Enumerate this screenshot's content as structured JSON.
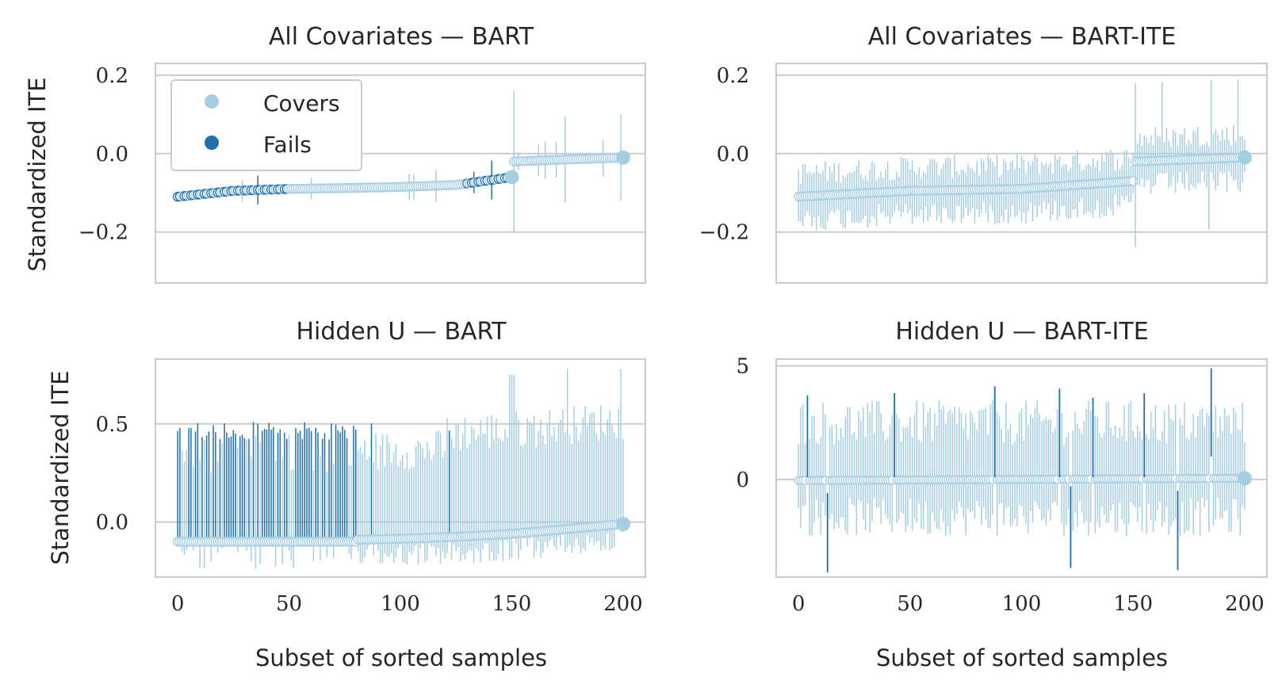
{
  "colors": {
    "covers": "#a6cee3",
    "fails": "#1f6fad",
    "grid": "#cccccc",
    "text": "#262626"
  },
  "legend": {
    "covers_label": "Covers",
    "fails_label": "Fails"
  },
  "chart_data": [
    {
      "id": "top-left",
      "type": "scatter",
      "title": "All Covariates — BART",
      "xlabel": "",
      "ylabel": "Standardized ITE",
      "xlim": [
        -10,
        210
      ],
      "ylim": [
        -0.33,
        0.23
      ],
      "xticks": [
        0,
        50,
        100,
        150,
        200
      ],
      "yticks": [
        0.2,
        0.0,
        -0.2
      ],
      "ytick_labels": [
        "0.2",
        "0.0",
        "−0.2"
      ],
      "show_xtick_labels": false,
      "legend": "top-left",
      "series": [
        {
          "name": "Covers",
          "x": [
            0,
            25,
            50,
            75,
            100,
            125,
            150,
            151,
            175,
            200
          ],
          "y": [
            -0.11,
            -0.095,
            -0.09,
            -0.088,
            -0.085,
            -0.08,
            -0.06,
            -0.02,
            -0.015,
            -0.01
          ],
          "ci_halfwidth": [
            0.008,
            0.007,
            0.007,
            0.008,
            0.01,
            0.01,
            0.12,
            0.01,
            0.01,
            0.01
          ]
        },
        {
          "name": "Fails",
          "x_ranges": [
            [
              0,
              50
            ],
            [
              130,
              150
            ]
          ],
          "y_at": [
            -0.095,
            -0.082
          ],
          "ci_halfwidth": 0.006
        }
      ]
    },
    {
      "id": "top-right",
      "type": "scatter",
      "title": "All Covariates — BART-ITE",
      "xlabel": "",
      "ylabel": "",
      "xlim": [
        -10,
        210
      ],
      "ylim": [
        -0.33,
        0.23
      ],
      "xticks": [
        0,
        50,
        100,
        150,
        200
      ],
      "yticks": [
        0.2,
        0.0,
        -0.2
      ],
      "ytick_labels": [
        "0.2",
        "0.0",
        "−0.2"
      ],
      "show_xtick_labels": false,
      "series": [
        {
          "name": "Covers",
          "x": [
            0,
            50,
            100,
            150,
            151,
            200
          ],
          "y": [
            -0.11,
            -0.095,
            -0.09,
            -0.07,
            -0.02,
            -0.01
          ],
          "ci_halfwidth": [
            0.06,
            0.06,
            0.06,
            0.06,
            0.08,
            0.08
          ]
        }
      ]
    },
    {
      "id": "bottom-left",
      "type": "scatter",
      "title": "Hidden U — BART",
      "xlabel": "Subset of sorted samples",
      "ylabel": "Standardized ITE",
      "xlim": [
        -10,
        210
      ],
      "ylim": [
        -0.28,
        0.83
      ],
      "xticks": [
        0,
        50,
        100,
        150,
        200
      ],
      "yticks": [
        0.5,
        0.0
      ],
      "ytick_labels": [
        "0.5",
        "0.0"
      ],
      "show_xtick_labels": true,
      "xtick_labels": [
        "0",
        "50",
        "100",
        "150",
        "200"
      ],
      "series": [
        {
          "name": "Covers",
          "x": [
            80,
            100,
            125,
            150,
            175,
            200
          ],
          "y": [
            -0.09,
            -0.085,
            -0.075,
            -0.06,
            -0.035,
            -0.01
          ],
          "ci_upper_max": 0.78,
          "ci_lower_min": -0.23
        },
        {
          "name": "Fails",
          "x_range": [
            0,
            80
          ],
          "y": -0.1,
          "ci_upper": 0.48
        }
      ]
    },
    {
      "id": "bottom-right",
      "type": "scatter",
      "title": "Hidden U — BART-ITE",
      "xlabel": "Subset of sorted samples",
      "ylabel": "",
      "xlim": [
        -10,
        210
      ],
      "ylim": [
        -4.3,
        5.3
      ],
      "xticks": [
        0,
        50,
        100,
        150,
        200
      ],
      "yticks": [
        5,
        0
      ],
      "ytick_labels": [
        "5",
        "0"
      ],
      "show_xtick_labels": true,
      "xtick_labels": [
        "0",
        "50",
        "100",
        "150",
        "200"
      ],
      "series": [
        {
          "name": "Covers",
          "x": [
            0,
            100,
            200
          ],
          "y": [
            -0.05,
            0.0,
            0.05
          ],
          "ci_upper_range": [
            1.5,
            3.5
          ],
          "ci_lower_range": [
            -2.5,
            -0.8
          ]
        },
        {
          "name": "Fails",
          "x": [
            4,
            13,
            43,
            88,
            117,
            122,
            132,
            155,
            170,
            185
          ],
          "lo": [
            0.1,
            -4.1,
            0.1,
            0.1,
            0.1,
            -3.9,
            0.1,
            0.1,
            -4.0,
            1.0
          ],
          "hi": [
            3.7,
            -0.6,
            3.8,
            4.1,
            4.0,
            -0.3,
            3.6,
            3.8,
            -0.5,
            4.9
          ]
        }
      ]
    }
  ]
}
